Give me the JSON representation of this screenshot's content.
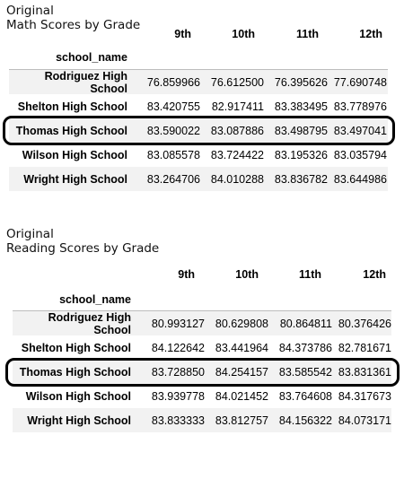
{
  "math": {
    "caption_line1": "Original",
    "caption_line2": "Math Scores by Grade",
    "index_name": "school_name",
    "columns": [
      "9th",
      "10th",
      "11th",
      "12th"
    ],
    "rows": [
      {
        "school": "Rodriguez High School",
        "values": [
          "76.859966",
          "76.612500",
          "76.395626",
          "77.690748"
        ]
      },
      {
        "school": "Shelton High School",
        "values": [
          "83.420755",
          "82.917411",
          "83.383495",
          "83.778976"
        ]
      },
      {
        "school": "Thomas High School",
        "values": [
          "83.590022",
          "83.087886",
          "83.498795",
          "83.497041"
        ]
      },
      {
        "school": "Wilson High School",
        "values": [
          "83.085578",
          "83.724422",
          "83.195326",
          "83.035794"
        ]
      },
      {
        "school": "Wright High School",
        "values": [
          "83.264706",
          "84.010288",
          "83.836782",
          "83.644986"
        ]
      }
    ]
  },
  "reading": {
    "caption_line1": "Original",
    "caption_line2": "Reading Scores by Grade",
    "index_name": "school_name",
    "columns": [
      "9th",
      "10th",
      "11th",
      "12th"
    ],
    "rows": [
      {
        "school": "Rodriguez High School",
        "values": [
          "80.993127",
          "80.629808",
          "80.864811",
          "80.376426"
        ]
      },
      {
        "school": "Shelton High School",
        "values": [
          "84.122642",
          "83.441964",
          "84.373786",
          "82.781671"
        ]
      },
      {
        "school": "Thomas High School",
        "values": [
          "83.728850",
          "84.254157",
          "83.585542",
          "83.831361"
        ]
      },
      {
        "school": "Wilson High School",
        "values": [
          "83.939778",
          "84.021452",
          "83.764608",
          "84.317673"
        ]
      },
      {
        "school": "Wright High School",
        "values": [
          "83.833333",
          "83.812757",
          "84.156322",
          "84.073171"
        ]
      }
    ]
  }
}
